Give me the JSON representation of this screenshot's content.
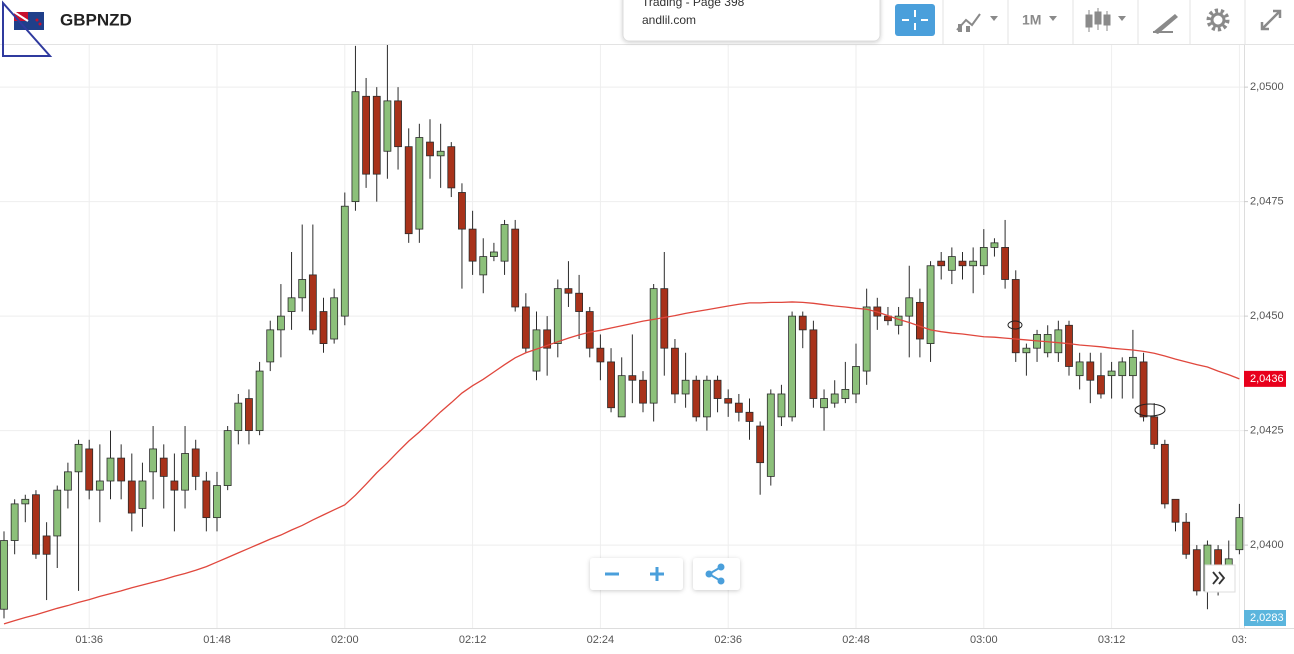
{
  "toolbar": {
    "symbol": "GBPNZD",
    "timeframe": "1M"
  },
  "popup": {
    "title": "Trading - Page 398",
    "site": "andlil.com"
  },
  "chart_data": {
    "type": "candlestick",
    "categories": [
      null,
      null,
      null,
      null,
      null,
      null,
      null,
      null,
      "01:36",
      null,
      null,
      null,
      null,
      null,
      null,
      null,
      null,
      null,
      null,
      null,
      "01:48",
      null,
      null,
      null,
      null,
      null,
      null,
      null,
      null,
      null,
      null,
      null,
      "02:00",
      null,
      null,
      null,
      null,
      null,
      null,
      null,
      null,
      null,
      null,
      null,
      "02:12",
      null,
      null,
      null,
      null,
      null,
      null,
      null,
      null,
      null,
      null,
      null,
      "02:24",
      null,
      null,
      null,
      null,
      null,
      null,
      null,
      null,
      null,
      null,
      null,
      "02:36",
      null,
      null,
      null,
      null,
      null,
      null,
      null,
      null,
      null,
      null,
      null,
      "02:48",
      null,
      null,
      null,
      null,
      null,
      null,
      null,
      null,
      null,
      null,
      null,
      "03:00",
      null,
      null,
      null,
      null,
      null,
      null,
      null,
      null,
      null,
      null,
      null,
      "03:12",
      null,
      null,
      null,
      null,
      null,
      null,
      null,
      null,
      null,
      null,
      null,
      "03:"
    ],
    "open": [
      2.0386,
      2.0401,
      2.0409,
      2.0411,
      2.0402,
      2.0402,
      2.0412,
      2.0416,
      2.0421,
      2.0412,
      2.0414,
      2.0419,
      2.0414,
      2.0408,
      2.0416,
      2.0419,
      2.0414,
      2.0412,
      2.0421,
      2.0414,
      2.0406,
      2.0413,
      2.0425,
      2.0432,
      2.0425,
      2.044,
      2.0447,
      2.0451,
      2.0454,
      2.0459,
      2.0451,
      2.0445,
      2.045,
      2.0475,
      2.0498,
      2.0498,
      2.0486,
      2.0497,
      2.0487,
      2.0469,
      2.0488,
      2.0485,
      2.0487,
      2.0477,
      2.0469,
      2.0459,
      2.0463,
      2.0462,
      2.0469,
      2.0452,
      2.0438,
      2.0447,
      2.0444,
      2.0456,
      2.0455,
      2.0451,
      2.0443,
      2.044,
      2.0428,
      2.0437,
      2.0436,
      2.0431,
      2.0456,
      2.0443,
      2.0433,
      2.0436,
      2.0428,
      2.0436,
      2.0432,
      2.0431,
      2.0429,
      2.0426,
      2.0415,
      2.0428,
      2.0428,
      2.045,
      2.0447,
      2.043,
      2.0431,
      2.0432,
      2.0433,
      2.0438,
      2.0452,
      2.045,
      2.0448,
      2.045,
      2.0453,
      2.0444,
      2.0462,
      2.046,
      2.0462,
      2.0461,
      2.0461,
      2.0465,
      2.0465,
      2.0458,
      2.0442,
      2.0443,
      2.0442,
      2.0442,
      2.0448,
      2.0437,
      2.044,
      2.0437,
      2.0437,
      2.0437,
      2.0437,
      2.044,
      2.0428,
      2.0422,
      2.041,
      2.0405,
      2.0399,
      2.039,
      2.0399,
      2.0395,
      2.0399
    ],
    "high": [
      2.0403,
      2.041,
      2.0411,
      2.0412,
      2.0405,
      2.0413,
      2.0418,
      2.0423,
      2.0423,
      2.0422,
      2.0425,
      2.0422,
      2.042,
      2.0418,
      2.0426,
      2.0422,
      2.042,
      2.0426,
      2.0423,
      2.0416,
      2.0416,
      2.0426,
      2.0433,
      2.0434,
      2.044,
      2.0449,
      2.0457,
      2.0464,
      2.047,
      2.047,
      2.0454,
      2.0456,
      2.0477,
      2.0509,
      2.0502,
      2.05,
      2.051,
      2.05,
      2.0491,
      2.0492,
      2.0493,
      2.0492,
      2.0488,
      2.0479,
      2.0473,
      2.0467,
      2.0466,
      2.0471,
      2.0471,
      2.0455,
      2.0451,
      2.045,
      2.0458,
      2.0462,
      2.0459,
      2.0452,
      2.0446,
      2.0443,
      2.0441,
      2.0446,
      2.0438,
      2.0457,
      2.0464,
      2.0445,
      2.0442,
      2.0437,
      2.0437,
      2.0437,
      2.0434,
      2.0433,
      2.0432,
      2.0427,
      2.0434,
      2.0435,
      2.0451,
      2.0451,
      2.0449,
      2.0434,
      2.0436,
      2.044,
      2.0444,
      2.0456,
      2.0454,
      2.0452,
      2.0452,
      2.0461,
      2.0456,
      2.0462,
      2.0464,
      2.0465,
      2.0464,
      2.0465,
      2.0469,
      2.0467,
      2.0471,
      2.046,
      2.0444,
      2.0447,
      2.0448,
      2.0449,
      2.0449,
      2.0442,
      2.0442,
      2.0442,
      2.044,
      2.0441,
      2.0447,
      2.0442,
      2.0431,
      2.0423,
      2.041,
      2.0407,
      2.04,
      2.0401,
      2.04,
      2.0401,
      2.0409
    ],
    "low": [
      2.0384,
      2.0398,
      2.0405,
      2.0397,
      2.0388,
      2.0395,
      2.0408,
      2.039,
      2.041,
      2.0405,
      2.041,
      2.041,
      2.0403,
      2.0404,
      2.041,
      2.0408,
      2.0403,
      2.0408,
      2.0412,
      2.0403,
      2.0403,
      2.0412,
      2.0422,
      2.0422,
      2.0424,
      2.0438,
      2.0441,
      2.0447,
      2.0451,
      2.0446,
      2.0442,
      2.0444,
      2.0448,
      2.0473,
      2.0478,
      2.0475,
      2.048,
      2.0482,
      2.0466,
      2.0466,
      2.048,
      2.0478,
      2.0476,
      2.0456,
      2.0459,
      2.0455,
      2.0462,
      2.0459,
      2.0451,
      2.0442,
      2.0436,
      2.0437,
      2.0441,
      2.0452,
      2.0445,
      2.0441,
      2.0436,
      2.0429,
      2.0428,
      2.0431,
      2.0429,
      2.0427,
      2.0437,
      2.0431,
      2.043,
      2.0427,
      2.0425,
      2.0429,
      2.0428,
      2.0427,
      2.0423,
      2.0411,
      2.0413,
      2.0426,
      2.0427,
      2.0443,
      2.043,
      2.0425,
      2.043,
      2.0431,
      2.0431,
      2.0435,
      2.0447,
      2.0448,
      2.0446,
      2.0441,
      2.0441,
      2.044,
      2.0458,
      2.0457,
      2.0458,
      2.0455,
      2.0459,
      2.0463,
      2.0456,
      2.044,
      2.0437,
      2.044,
      2.0441,
      2.044,
      2.0437,
      2.0434,
      2.0431,
      2.0432,
      2.0432,
      2.0432,
      2.0432,
      2.0427,
      2.0421,
      2.0408,
      2.0403,
      2.0397,
      2.0389,
      2.0386,
      2.0389,
      2.039,
      2.0398
    ],
    "close": [
      2.0401,
      2.0409,
      2.041,
      2.0398,
      2.0398,
      2.0412,
      2.0416,
      2.0422,
      2.0412,
      2.0414,
      2.0419,
      2.0414,
      2.0407,
      2.0414,
      2.0421,
      2.0415,
      2.0412,
      2.042,
      2.0415,
      2.0406,
      2.0413,
      2.0425,
      2.0431,
      2.0425,
      2.0438,
      2.0447,
      2.045,
      2.0454,
      2.0458,
      2.0447,
      2.0444,
      2.0454,
      2.0474,
      2.0499,
      2.0481,
      2.0481,
      2.0497,
      2.0487,
      2.0468,
      2.0489,
      2.0485,
      2.0486,
      2.0478,
      2.0469,
      2.0462,
      2.0463,
      2.0464,
      2.047,
      2.0452,
      2.0443,
      2.0447,
      2.0443,
      2.0456,
      2.0455,
      2.0451,
      2.0443,
      2.044,
      2.043,
      2.0437,
      2.0436,
      2.0431,
      2.0456,
      2.0443,
      2.0433,
      2.0436,
      2.0428,
      2.0436,
      2.0432,
      2.0431,
      2.0429,
      2.0427,
      2.0418,
      2.0433,
      2.0433,
      2.045,
      2.0447,
      2.0432,
      2.0432,
      2.0433,
      2.0434,
      2.0439,
      2.0452,
      2.045,
      2.0449,
      2.045,
      2.0454,
      2.0445,
      2.0461,
      2.0461,
      2.0463,
      2.0461,
      2.0462,
      2.0465,
      2.0466,
      2.0458,
      2.0442,
      2.0443,
      2.0446,
      2.0446,
      2.0447,
      2.0439,
      2.044,
      2.0436,
      2.0433,
      2.0438,
      2.044,
      2.0441,
      2.0428,
      2.0422,
      2.0409,
      2.0405,
      2.0398,
      2.039,
      2.04,
      2.039,
      2.0397,
      2.0406
    ],
    "up_color": "#8cc07a",
    "down_color": "#a8321a",
    "wick_color": "#2b2b2b",
    "moving_average": {
      "color": "#e0473d",
      "values": [
        2.03828,
        2.03835,
        2.03842,
        2.03848,
        2.03855,
        2.03862,
        2.03868,
        2.03875,
        2.03881,
        2.03888,
        2.03894,
        2.039,
        2.03907,
        2.03913,
        2.03919,
        2.03925,
        2.03932,
        2.03938,
        2.03945,
        2.03953,
        2.03963,
        2.03973,
        2.03983,
        2.03993,
        2.04003,
        2.04013,
        2.04022,
        2.04033,
        2.04043,
        2.04055,
        2.04066,
        2.04077,
        2.04088,
        2.04109,
        2.04133,
        2.04158,
        2.0418,
        2.04204,
        2.04227,
        2.04247,
        2.04269,
        2.04291,
        2.04311,
        2.04332,
        2.04348,
        2.04362,
        2.04378,
        2.04394,
        2.04409,
        2.0442,
        2.04428,
        2.04436,
        2.04444,
        2.04452,
        2.04459,
        2.04465,
        2.04469,
        2.04474,
        2.04479,
        2.04484,
        2.04489,
        2.04493,
        2.04497,
        2.04501,
        2.04506,
        2.0451,
        2.04514,
        2.04518,
        2.04522,
        2.04526,
        2.04529,
        2.04529,
        2.0453,
        2.0453,
        2.04531,
        2.0453,
        2.04528,
        2.04525,
        2.04522,
        2.0452,
        2.04517,
        2.04515,
        2.04509,
        2.04501,
        2.04493,
        2.04486,
        2.04478,
        2.0447,
        2.04466,
        2.04463,
        2.04461,
        2.04458,
        2.04455,
        2.04454,
        2.04452,
        2.0445,
        2.04448,
        2.04446,
        2.04444,
        2.04442,
        2.0444,
        2.04437,
        2.04435,
        2.04433,
        2.0443,
        2.04428,
        2.04426,
        2.04423,
        2.04419,
        2.04413,
        2.04406,
        2.044,
        2.04394,
        2.04389,
        2.0438,
        2.04372,
        2.04363
      ],
      "last_label": "2,0436"
    },
    "price_label": "2,0283",
    "ylim": [
      2.03819,
      2.05092
    ],
    "yticks": [
      {
        "value": 2.05,
        "label": "2,0500"
      },
      {
        "value": 2.0475,
        "label": "2,0475"
      },
      {
        "value": 2.045,
        "label": "2,0450"
      },
      {
        "value": 2.0425,
        "label": "2,0425"
      },
      {
        "value": 2.04,
        "label": "2,0400"
      }
    ],
    "grid": true
  }
}
